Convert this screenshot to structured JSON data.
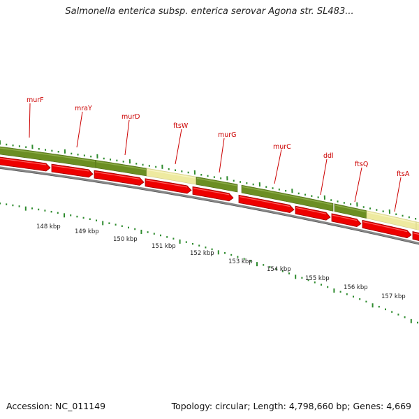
{
  "title": "Salmonella enterica subsp. enterica serovar Agona str. SL483...",
  "footer": {
    "accession_label": "Accession:",
    "accession": "NC_011149",
    "topology_label": "Topology:",
    "topology": "circular",
    "length_label": "Length:",
    "length": "4,798,660 bp",
    "genes_label": "Genes:",
    "genes": "4,669"
  },
  "colors": {
    "gene_label": "#cc0000",
    "feature_arrow": "#ee0000",
    "feature_green": "#6b8e23",
    "feature_yellow": "#eeeaa0",
    "tick_green": "#2e8b2e",
    "backbone": "#888888"
  },
  "kbp_ticks": [
    "148 kbp",
    "149 kbp",
    "150 kbp",
    "151 kbp",
    "152 kbp",
    "153 kbp",
    "154 kbp",
    "155 kbp",
    "156 kbp",
    "157 kbp"
  ],
  "gene_labels": [
    "murF",
    "mraY",
    "murD",
    "ftsW",
    "murG",
    "murC",
    "ddl",
    "ftsQ",
    "ftsA"
  ]
}
